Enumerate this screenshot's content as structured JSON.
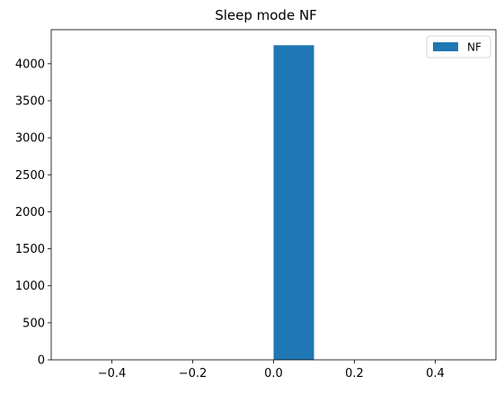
{
  "chart_data": {
    "type": "bar",
    "title": "Sleep mode NF",
    "xlabel": "",
    "ylabel": "",
    "xlim": [
      -0.55,
      0.55
    ],
    "ylim": [
      0,
      4460
    ],
    "xticks": [
      -0.4,
      -0.2,
      0.0,
      0.2,
      0.4
    ],
    "xtick_labels": [
      "−0.4",
      "−0.2",
      "0.0",
      "0.2",
      "0.4"
    ],
    "yticks": [
      0,
      500,
      1000,
      1500,
      2000,
      2500,
      3000,
      3500,
      4000
    ],
    "ytick_labels": [
      "0",
      "500",
      "1000",
      "1500",
      "2000",
      "2500",
      "3000",
      "3500",
      "4000"
    ],
    "grid": false,
    "legend_position": "top-right",
    "series": [
      {
        "name": "NF",
        "color": "#1f77b4",
        "bars": [
          {
            "x_start": 0.0,
            "x_end": 0.1,
            "value": 4250
          }
        ]
      }
    ]
  }
}
